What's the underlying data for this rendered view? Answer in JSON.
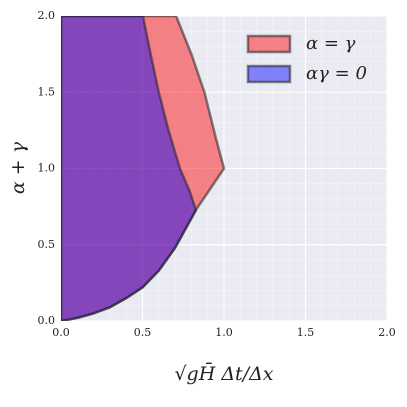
{
  "chart_data": {
    "type": "area",
    "xlabel": "√gH̄ Δt/Δx",
    "ylabel": "α + γ",
    "xlim": [
      0,
      2
    ],
    "ylim": [
      0,
      2
    ],
    "xticks": [
      {
        "value": 0,
        "label": "0.0"
      },
      {
        "value": 0.5,
        "label": "0.5"
      },
      {
        "value": 1,
        "label": "1.0"
      },
      {
        "value": 1.5,
        "label": "1.5"
      },
      {
        "value": 2,
        "label": "2.0"
      }
    ],
    "yticks": [
      {
        "value": 0,
        "label": "0.0"
      },
      {
        "value": 0.5,
        "label": "0.5"
      },
      {
        "value": 1,
        "label": "1.0"
      },
      {
        "value": 1.5,
        "label": "1.5"
      },
      {
        "value": 2,
        "label": "2.0"
      }
    ],
    "xminorticks": [
      0.1,
      0.2,
      0.3,
      0.4,
      0.6,
      0.7,
      0.8,
      0.9,
      1.1,
      1.2,
      1.3,
      1.4,
      1.6,
      1.7,
      1.8,
      1.9
    ],
    "yminorticks": [
      0.1,
      0.2,
      0.3,
      0.4,
      0.6,
      0.7,
      0.8,
      0.9,
      1.1,
      1.2,
      1.3,
      1.4,
      1.6,
      1.7,
      1.8,
      1.9
    ],
    "grid": true,
    "legend": "upper right",
    "series": [
      {
        "name": "α = γ",
        "color": "#ff0000",
        "x": [
          0,
          0.1,
          0.2,
          0.3,
          0.4,
          0.5,
          0.6,
          0.7,
          0.828,
          1,
          0.95,
          0.88,
          0.8,
          0.706,
          0
        ],
        "values": [
          0,
          0.02,
          0.05,
          0.09,
          0.15,
          0.22,
          0.33,
          0.48,
          0.728,
          1,
          1.2,
          1.5,
          1.75,
          2,
          2
        ]
      },
      {
        "name": "αγ = 0",
        "color": "#0000ff",
        "x": [
          0,
          0.1,
          0.2,
          0.3,
          0.4,
          0.5,
          0.6,
          0.7,
          0.828,
          0.79,
          0.73,
          0.66,
          0.6,
          0.55,
          0.503,
          0
        ],
        "values": [
          0,
          0.02,
          0.05,
          0.09,
          0.15,
          0.22,
          0.33,
          0.48,
          0.728,
          0.85,
          1,
          1.25,
          1.5,
          1.75,
          2,
          2
        ]
      }
    ]
  }
}
